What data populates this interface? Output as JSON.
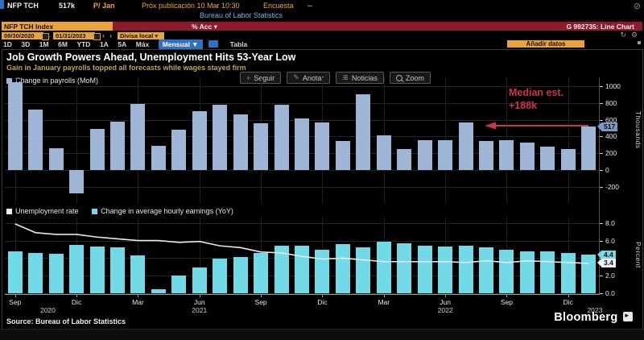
{
  "terminal": {
    "ticker": "NFP TCH",
    "last_value": "517k",
    "price_label": "P/ Jan",
    "next_release": "Próx publicación 10 Mar 10:30",
    "survey_label": "Encuesta",
    "survey_value": "--",
    "source_line": "Bureau of Labor Statistics",
    "security_field": "NFP TCH Index",
    "acc_label": "% Acc",
    "chart_id": "G 992735: Line Chart",
    "date_from": "09/30/2020",
    "date_to": "01/31/2023",
    "prev_arrow": "‹",
    "next_arrow": "›",
    "currency_label": "Divisa local",
    "periods": [
      "1D",
      "3D",
      "1M",
      "6M",
      "YTD",
      "1A",
      "5A",
      "Máx"
    ],
    "frequency": "Mensual",
    "table_label": "Tabla",
    "add_data_label": "Añadir datos"
  },
  "chart": {
    "title": "Job Growth Powers Ahead, Unemployment Hits 53-Year Low",
    "subtitle": "Gain in January payrolls topped all forecasts while wages stayed firm",
    "toolbar": [
      "Seguir",
      "Anotar",
      "Noticias",
      "Zoom"
    ],
    "annotation_line1": "Median est.",
    "annotation_line2": "+188k",
    "source": "Source: Bureau of Labor Statistics",
    "brand": "Bloomberg"
  },
  "colors": {
    "payroll_bar": "#9fb5d6",
    "earnings_bar": "#72d9e6",
    "unemployment_line": "#e8e8e8",
    "annotation_red": "#cf3349",
    "amber": "#f5a53a",
    "header_red": "#8e1a2e",
    "tag_blue": "#7b97c9",
    "tag_cyan": "#72d9e6",
    "tag_white": "#f0f0f0",
    "link_blue": "#72b3e0"
  },
  "chart_data": [
    {
      "type": "bar",
      "title": "Change in payrolls (MoM)",
      "ylabel": "Thousands",
      "ylim": [
        -400,
        1100
      ],
      "yticks": [
        1000,
        800,
        600,
        400,
        200,
        0,
        -200
      ],
      "grid": true,
      "legend_position": "top-left",
      "x": [
        "Sep 2020",
        "Oct 2020",
        "Nov 2020",
        "Dic 2020",
        "Ene 2021",
        "Feb 2021",
        "Mar 2021",
        "Abr 2021",
        "May 2021",
        "Jun 2021",
        "Jul 2021",
        "Ago 2021",
        "Sep 2021",
        "Oct 2021",
        "Nov 2021",
        "Dic 2021",
        "Ene 2022",
        "Feb 2022",
        "Mar 2022",
        "Abr 2022",
        "May 2022",
        "Jun 2022",
        "Jul 2022",
        "Ago 2022",
        "Sep 2022",
        "Oct 2022",
        "Nov 2022",
        "Dic 2022",
        "Ene 2023"
      ],
      "values": [
        1045,
        720,
        260,
        -280,
        490,
        580,
        790,
        285,
        480,
        700,
        775,
        660,
        555,
        780,
        620,
        570,
        350,
        900,
        410,
        250,
        355,
        360,
        565,
        345,
        355,
        325,
        275,
        250,
        517
      ],
      "last_value_tag": "517",
      "annotation": {
        "text": "Median est. +188k",
        "value": 188
      }
    },
    {
      "type": "bar+line",
      "ylabel": "Percent",
      "ylim": [
        0,
        8.6
      ],
      "yticks": [
        8.0,
        6.0,
        4.0,
        2.0,
        0.0
      ],
      "ytick_labels": [
        "8.0",
        "6.0",
        "",
        "2.0",
        "0.0"
      ],
      "grid": true,
      "legend_position": "top-left",
      "x": [
        "Sep 2020",
        "Oct 2020",
        "Nov 2020",
        "Dic 2020",
        "Ene 2021",
        "Feb 2021",
        "Mar 2021",
        "Abr 2021",
        "May 2021",
        "Jun 2021",
        "Jul 2021",
        "Ago 2021",
        "Sep 2021",
        "Oct 2021",
        "Nov 2021",
        "Dic 2021",
        "Ene 2022",
        "Feb 2022",
        "Mar 2022",
        "Abr 2022",
        "May 2022",
        "Jun 2022",
        "Jul 2022",
        "Ago 2022",
        "Sep 2022",
        "Oct 2022",
        "Nov 2022",
        "Dic 2022",
        "Ene 2023"
      ],
      "series": [
        {
          "name": "Unemployment rate",
          "type": "line",
          "values": [
            7.9,
            6.9,
            6.7,
            6.7,
            6.4,
            6.2,
            6.0,
            6.0,
            5.8,
            5.9,
            5.4,
            5.2,
            4.7,
            4.6,
            4.2,
            3.9,
            4.0,
            3.8,
            3.6,
            3.6,
            3.6,
            3.6,
            3.5,
            3.7,
            3.5,
            3.7,
            3.6,
            3.5,
            3.4
          ],
          "last_value_tag": "3.4"
        },
        {
          "name": "Change in average hourly earnings (YoY)",
          "type": "bar",
          "values": [
            4.8,
            4.6,
            4.5,
            5.5,
            5.3,
            5.2,
            4.3,
            0.5,
            2.0,
            2.9,
            3.9,
            4.1,
            4.6,
            5.4,
            5.4,
            5.0,
            5.6,
            5.2,
            5.9,
            5.7,
            5.4,
            5.3,
            5.4,
            5.2,
            5.0,
            4.8,
            4.8,
            4.6,
            4.4
          ],
          "last_value_tag": "4.4"
        }
      ],
      "x_ticks": [
        {
          "index": 0,
          "label": "Sep"
        },
        {
          "index": 3,
          "label": "Dic"
        },
        {
          "index": 6,
          "label": "Mar"
        },
        {
          "index": 9,
          "label": "Jun"
        },
        {
          "index": 12,
          "label": "Sep"
        },
        {
          "index": 15,
          "label": "Dic"
        },
        {
          "index": 18,
          "label": "Mar"
        },
        {
          "index": 21,
          "label": "Jun"
        },
        {
          "index": 24,
          "label": "Sep"
        },
        {
          "index": 27,
          "label": "Dic"
        }
      ],
      "year_labels": [
        {
          "index": 1.6,
          "label": "2020"
        },
        {
          "index": 9,
          "label": "2021"
        },
        {
          "index": 21,
          "label": "2022"
        },
        {
          "index": 28.3,
          "label": "2023"
        }
      ]
    }
  ]
}
